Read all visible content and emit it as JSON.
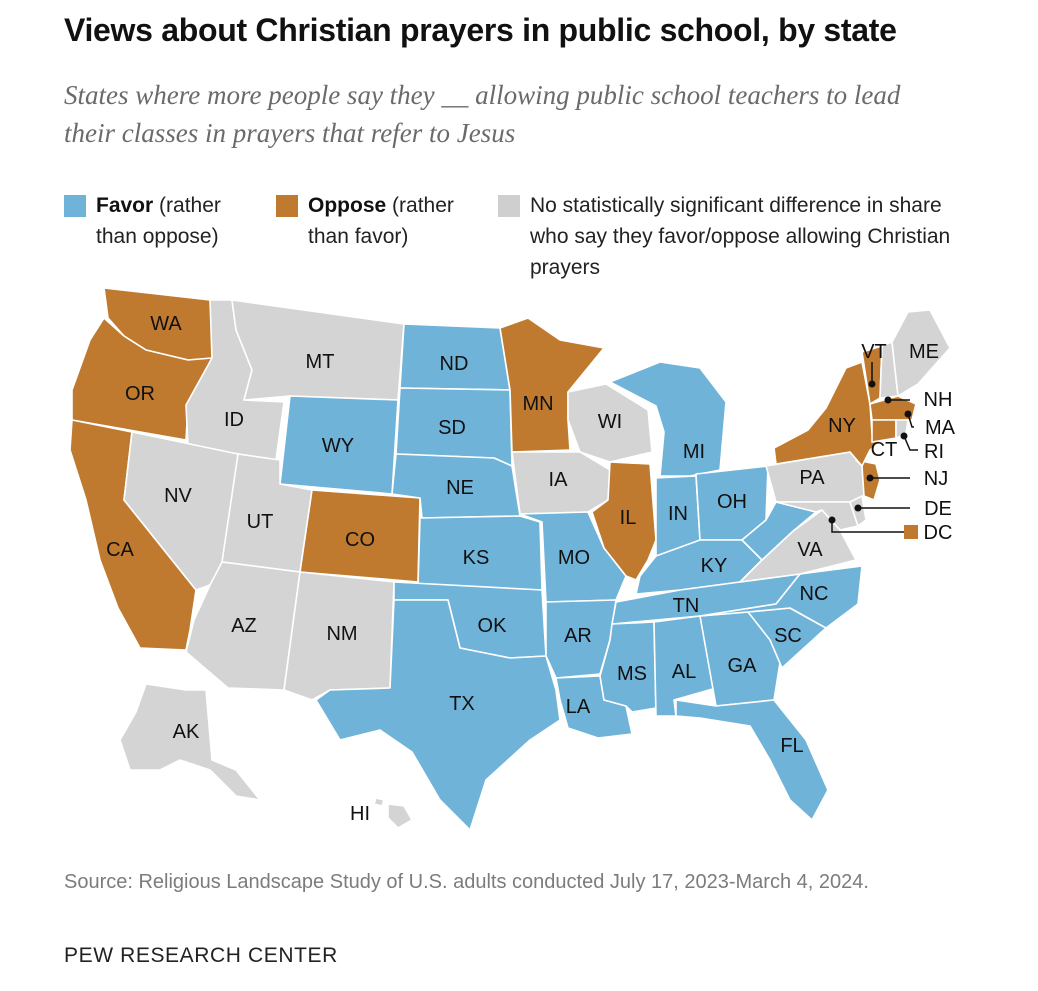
{
  "title": "Views about Christian prayers in public school, by state",
  "subtitle": "States where more people say they __ allowing public school teachers to lead their classes in prayers that refer to Jesus",
  "legend": {
    "favor": {
      "bold": "Favor",
      "rest": " (rather than oppose)",
      "color": "#6fb3d9"
    },
    "oppose": {
      "bold": "Oppose",
      "rest": " (rather than favor)",
      "color": "#bf7a2f"
    },
    "none": {
      "text": "No statistically significant difference in share who say they favor/oppose allowing Christian prayers",
      "color": "#cfcfcf"
    }
  },
  "colors": {
    "favor": "#6fb3d9",
    "oppose": "#bf7a2f",
    "none": "#d4d4d4",
    "border": "#ffffff"
  },
  "states": {
    "favor": [
      "ND",
      "SD",
      "NE",
      "KS",
      "OK",
      "TX",
      "WY",
      "MO",
      "AR",
      "LA",
      "MS",
      "AL",
      "GA",
      "FL",
      "SC",
      "NC",
      "TN",
      "KY",
      "IN",
      "OH",
      "MI",
      "WV"
    ],
    "oppose": [
      "WA",
      "OR",
      "CA",
      "CO",
      "MN",
      "IL",
      "NY",
      "VT",
      "MA",
      "CT",
      "NJ",
      "DC"
    ],
    "none": [
      "MT",
      "ID",
      "NV",
      "UT",
      "AZ",
      "NM",
      "AK",
      "HI",
      "IA",
      "WI",
      "PA",
      "VA",
      "MD",
      "DE",
      "NH",
      "ME",
      "RI"
    ]
  },
  "labels": {
    "WA": "WA",
    "OR": "OR",
    "CA": "CA",
    "ID": "ID",
    "NV": "NV",
    "MT": "MT",
    "WY": "WY",
    "UT": "UT",
    "AZ": "AZ",
    "CO": "CO",
    "NM": "NM",
    "ND": "ND",
    "SD": "SD",
    "NE": "NE",
    "KS": "KS",
    "OK": "OK",
    "TX": "TX",
    "MN": "MN",
    "IA": "IA",
    "MO": "MO",
    "AR": "AR",
    "LA": "LA",
    "WI": "WI",
    "IL": "IL",
    "MS": "MS",
    "MI": "MI",
    "IN": "IN",
    "OH": "OH",
    "KY": "KY",
    "TN": "TN",
    "AL": "AL",
    "GA": "GA",
    "FL": "FL",
    "SC": "SC",
    "NC": "NC",
    "VA": "VA",
    "PA": "PA",
    "NY": "NY",
    "VT": "VT",
    "ME": "ME",
    "NH": "NH",
    "MA": "MA",
    "RI": "RI",
    "CT": "CT",
    "NJ": "NJ",
    "DE": "DE",
    "DC": "DC",
    "AK": "AK",
    "HI": "HI"
  },
  "source": "Source: Religious Landscape Study of U.S. adults conducted July 17, 2023-March 4, 2024.",
  "org": "PEW RESEARCH CENTER"
}
